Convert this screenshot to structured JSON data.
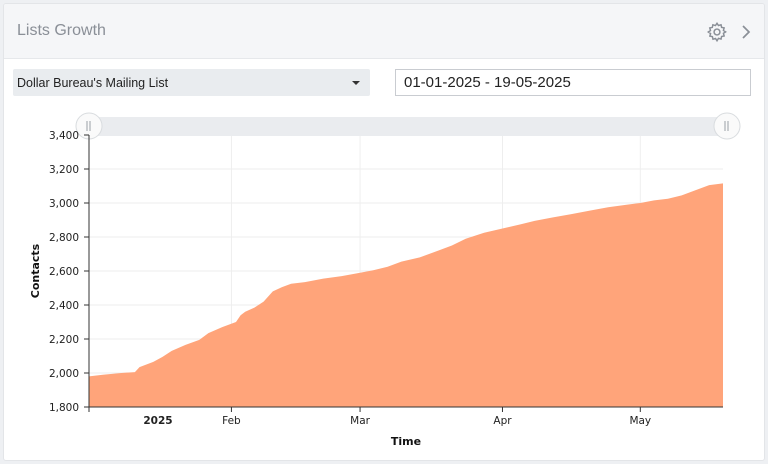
{
  "header": {
    "title": "Lists Growth",
    "settings_icon": "gear-icon",
    "expand_icon": "chevron-right-icon"
  },
  "controls": {
    "list_select": {
      "selected": "Dollar Bureau's Mailing List"
    },
    "date_range": {
      "value": "01-01-2025 - 19-05-2025"
    }
  },
  "colors": {
    "area_fill": "#ffa47a",
    "panel_bg": "#ffffff",
    "header_bg": "#f5f6f8"
  },
  "chart_data": {
    "type": "area",
    "title": "",
    "xlabel": "Time",
    "ylabel": "Contacts",
    "ylim": [
      1800,
      3400
    ],
    "yticks": [
      "1,800",
      "2,000",
      "2,200",
      "2,400",
      "2,600",
      "2,800",
      "3,000",
      "3,200",
      "3,400"
    ],
    "yticks_values": [
      1800,
      2000,
      2200,
      2400,
      2600,
      2800,
      3000,
      3200,
      3400
    ],
    "xlim": [
      "2025-01-01",
      "2025-05-19"
    ],
    "xticks": [
      {
        "label": "2025",
        "date": "2025-01-01",
        "bold": true
      },
      {
        "label": "Feb",
        "date": "2025-02-01",
        "bold": false
      },
      {
        "label": "Mar",
        "date": "2025-03-01",
        "bold": false
      },
      {
        "label": "Apr",
        "date": "2025-04-01",
        "bold": false
      },
      {
        "label": "May",
        "date": "2025-05-01",
        "bold": false
      }
    ],
    "grid": true,
    "series": [
      {
        "x": [
          "2025-01-01",
          "2025-01-04",
          "2025-01-08",
          "2025-01-11",
          "2025-01-12",
          "2025-01-15",
          "2025-01-17",
          "2025-01-19",
          "2025-01-22",
          "2025-01-25",
          "2025-01-27",
          "2025-01-30",
          "2025-02-02",
          "2025-02-03",
          "2025-02-04",
          "2025-02-06",
          "2025-02-08",
          "2025-02-10",
          "2025-02-12",
          "2025-02-14",
          "2025-02-17",
          "2025-02-21",
          "2025-02-25",
          "2025-03-01",
          "2025-03-04",
          "2025-03-07",
          "2025-03-10",
          "2025-03-14",
          "2025-03-18",
          "2025-03-21",
          "2025-03-24",
          "2025-03-28",
          "2025-04-01",
          "2025-04-05",
          "2025-04-08",
          "2025-04-12",
          "2025-04-16",
          "2025-04-20",
          "2025-04-24",
          "2025-04-28",
          "2025-05-01",
          "2025-05-04",
          "2025-05-07",
          "2025-05-10",
          "2025-05-13",
          "2025-05-16",
          "2025-05-19"
        ],
        "values": [
          1980,
          1990,
          2000,
          2005,
          2035,
          2065,
          2095,
          2130,
          2165,
          2195,
          2235,
          2270,
          2300,
          2340,
          2360,
          2385,
          2420,
          2480,
          2505,
          2525,
          2535,
          2555,
          2570,
          2590,
          2605,
          2625,
          2655,
          2680,
          2720,
          2750,
          2790,
          2825,
          2850,
          2875,
          2895,
          2915,
          2935,
          2955,
          2975,
          2990,
          3000,
          3015,
          3025,
          3045,
          3075,
          3105,
          3115
        ]
      }
    ]
  }
}
